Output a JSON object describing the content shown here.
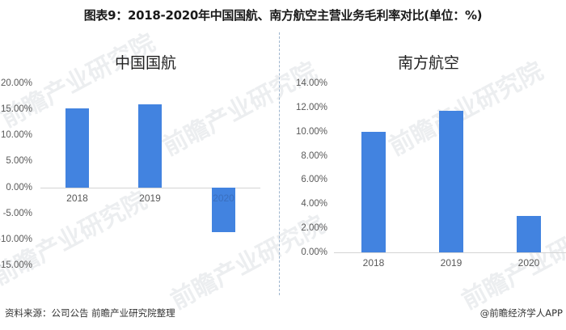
{
  "title": "图表9：2018-2020年中国国航、南方航空主营业务毛利率对比(单位：%)",
  "footer": {
    "source": "资料来源：公司公告 前瞻产业研究院整理",
    "credit": "@前瞻经济学人APP"
  },
  "watermark": "前瞻产业研究院",
  "colors": {
    "bar": "#4283e0",
    "axis": "#d4d4d4",
    "divider": "#9fb6cf"
  },
  "chart_data": [
    {
      "type": "bar",
      "title": "中国国航",
      "categories": [
        "2018",
        "2019",
        "2020"
      ],
      "values": [
        15.2,
        16.0,
        -8.6
      ],
      "ylabel": "",
      "xlabel": "",
      "ylim": [
        -15,
        20
      ],
      "yticks": [
        "20.00%",
        "15.00%",
        "10.00%",
        "5.00%",
        "0.00%",
        "-5.00%",
        "-10.00%",
        "-15.00%"
      ],
      "grid": false,
      "legend": null
    },
    {
      "type": "bar",
      "title": "南方航空",
      "categories": [
        "2018",
        "2019",
        "2020"
      ],
      "values": [
        10.0,
        11.7,
        3.0
      ],
      "ylabel": "",
      "xlabel": "",
      "ylim": [
        0,
        14
      ],
      "yticks": [
        "14.00%",
        "12.00%",
        "10.00%",
        "8.00%",
        "6.00%",
        "4.00%",
        "2.00%",
        "0.00%"
      ],
      "grid": false,
      "legend": null
    }
  ]
}
